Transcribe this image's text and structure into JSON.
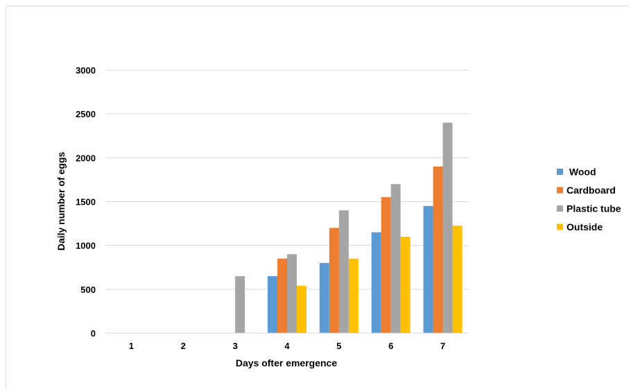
{
  "chart_data": {
    "type": "bar",
    "title": "",
    "xlabel": "Days ofter emergence",
    "ylabel": "Daily number of eggs",
    "categories": [
      "1",
      "2",
      "3",
      "4",
      "5",
      "6",
      "7"
    ],
    "ylim": [
      0,
      3000
    ],
    "yticks": [
      0,
      500,
      1000,
      1500,
      2000,
      2500,
      3000
    ],
    "grid": true,
    "legend_position": "right",
    "series": [
      {
        "name": " Wood",
        "color": "#5b9bd5",
        "values": [
          0,
          0,
          0,
          650,
          800,
          1150,
          1450
        ]
      },
      {
        "name": "Cardboard",
        "color": "#ed7d31",
        "values": [
          0,
          0,
          0,
          850,
          1200,
          1550,
          1900
        ]
      },
      {
        "name": "Plastic tube",
        "color": "#a5a5a5",
        "values": [
          0,
          0,
          650,
          900,
          1400,
          1700,
          2400
        ]
      },
      {
        "name": "Outside",
        "color": "#ffc000",
        "values": [
          0,
          0,
          0,
          540,
          850,
          1100,
          1225
        ]
      }
    ]
  }
}
